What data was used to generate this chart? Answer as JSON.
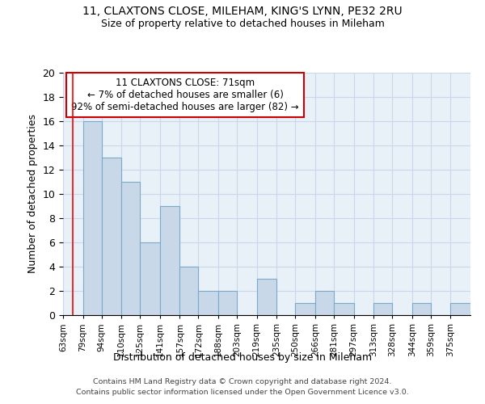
{
  "title1": "11, CLAXTONS CLOSE, MILEHAM, KING'S LYNN, PE32 2RU",
  "title2": "Size of property relative to detached houses in Mileham",
  "xlabel": "Distribution of detached houses by size in Mileham",
  "ylabel": "Number of detached properties",
  "footer1": "Contains HM Land Registry data © Crown copyright and database right 2024.",
  "footer2": "Contains public sector information licensed under the Open Government Licence v3.0.",
  "annotation_line1": "11 CLAXTONS CLOSE: 71sqm",
  "annotation_line2": "← 7% of detached houses are smaller (6)",
  "annotation_line3": "92% of semi-detached houses are larger (82) →",
  "bar_edges": [
    63,
    79,
    94,
    110,
    125,
    141,
    157,
    172,
    188,
    203,
    219,
    235,
    250,
    266,
    281,
    297,
    313,
    328,
    344,
    359,
    375
  ],
  "bar_labels": [
    "63sqm",
    "79sqm",
    "94sqm",
    "110sqm",
    "125sqm",
    "141sqm",
    "157sqm",
    "172sqm",
    "188sqm",
    "203sqm",
    "219sqm",
    "235sqm",
    "250sqm",
    "266sqm",
    "281sqm",
    "297sqm",
    "313sqm",
    "328sqm",
    "344sqm",
    "359sqm",
    "375sqm"
  ],
  "bar_heights": [
    0,
    16,
    13,
    11,
    6,
    9,
    4,
    2,
    2,
    0,
    3,
    0,
    1,
    2,
    1,
    0,
    1,
    0,
    1,
    0,
    1
  ],
  "bar_color": "#c8d8e8",
  "bar_edge_color": "#7aaac8",
  "red_line_x": 71,
  "ylim": [
    0,
    20
  ],
  "yticks": [
    0,
    2,
    4,
    6,
    8,
    10,
    12,
    14,
    16,
    18,
    20
  ],
  "annotation_box_color": "#ffffff",
  "annotation_box_edge": "#cc0000",
  "annotation_text_color": "#000000",
  "grid_color": "#c8d8e8",
  "background_color": "#e8f0f8"
}
